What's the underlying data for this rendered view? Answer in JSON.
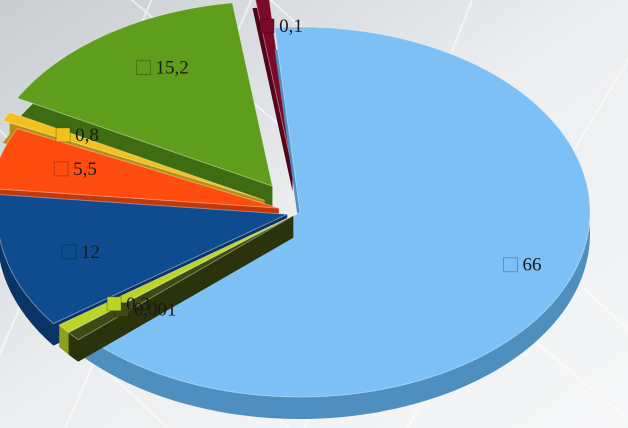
{
  "chart_data": {
    "type": "pie",
    "title": "",
    "exploded": true,
    "three_d": true,
    "decimal_separator": "comma",
    "slices": [
      {
        "label": "66",
        "value": 66,
        "color": "#7cc0f5",
        "side": "#4f8fbf"
      },
      {
        "label": "0,001",
        "value": 0.001,
        "color": "#3d4a12",
        "side": "#2a330c"
      },
      {
        "label": "0,3",
        "value": 0.3,
        "color": "#bcd424",
        "side": "#8ca01a"
      },
      {
        "label": "12",
        "value": 12,
        "color": "#0f4c8f",
        "side": "#0a3466"
      },
      {
        "label": "5,5",
        "value": 5.5,
        "color": "#ff4d10",
        "side": "#c2380a"
      },
      {
        "label": "0,8",
        "value": 0.8,
        "color": "#f2c21b",
        "side": "#b58f12"
      },
      {
        "label": "15,2",
        "value": 15.2,
        "color": "#5e9e1c",
        "side": "#3f6c12"
      },
      {
        "label": "0,1",
        "value": 0.1,
        "color": "#7a0a28",
        "side": "#52061b"
      }
    ]
  }
}
